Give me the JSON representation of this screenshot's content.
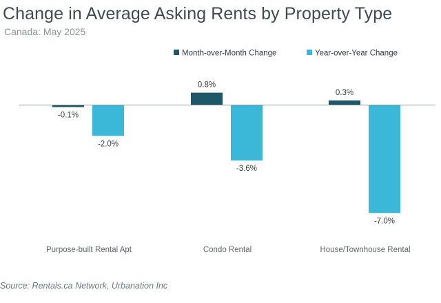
{
  "title": "Change in Average Asking Rents by Property Type",
  "subtitle": "Canada: May 2025",
  "source": "Source: Rentals.ca Network, Urbanation Inc",
  "colors": {
    "mom": "#1e5868",
    "yoy": "#3bb8d8",
    "axis": "#8c969c",
    "label": "#333d44",
    "category": "#5c656c"
  },
  "chart_data": {
    "type": "bar",
    "categories": [
      "Purpose-built Rental Apt",
      "Condo Rental",
      "House/Townhouse Rental"
    ],
    "series": [
      {
        "name": "Month-over-Month Change",
        "values": [
          -0.1,
          0.8,
          0.3
        ],
        "labels": [
          "-0.1%",
          "0.8%",
          "0.3%"
        ]
      },
      {
        "name": "Year-over-Year Change",
        "values": [
          -2.0,
          -3.6,
          -7.0
        ],
        "labels": [
          "-2.0%",
          "-3.6%",
          "-7.0%"
        ]
      }
    ],
    "ylim": [
      -7.0,
      0.8
    ],
    "legend": "top-right",
    "grid": false
  }
}
